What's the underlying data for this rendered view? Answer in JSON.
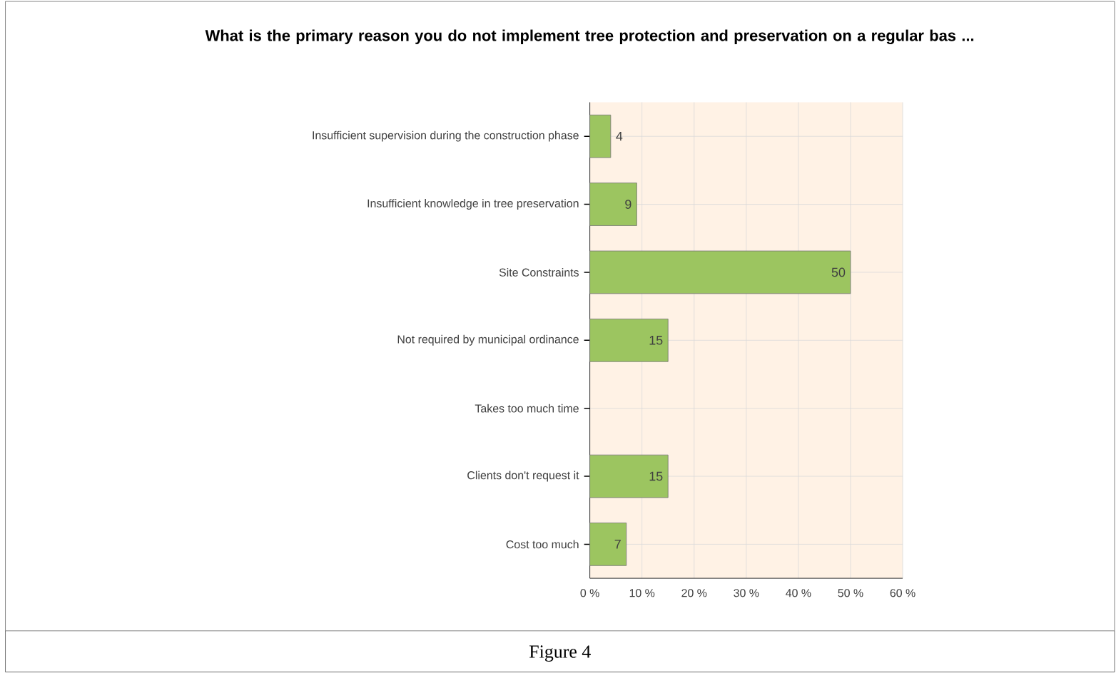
{
  "chart_data": {
    "type": "bar",
    "orientation": "horizontal",
    "title": "What is the primary reason you do not implement tree protection and preservation on a regular bas ...",
    "categories": [
      "Insufficient supervision during the construction phase",
      "Insufficient knowledge in tree preservation",
      "Site Constraints",
      "Not required by municipal ordinance",
      "Takes too much time",
      "Clients don't request it",
      "Cost too much"
    ],
    "values": [
      4,
      9,
      50,
      15,
      0,
      15,
      7
    ],
    "value_labels": [
      "4",
      "9",
      "50",
      "15",
      null,
      "15",
      "7"
    ],
    "color": "#9cc560",
    "xlim": [
      0,
      60
    ],
    "xticks": [
      {
        "value": 0,
        "label": "0 %"
      },
      {
        "value": 10,
        "label": "10 %"
      },
      {
        "value": 20,
        "label": "20 %"
      },
      {
        "value": 30,
        "label": "30 %"
      },
      {
        "value": 40,
        "label": "40 %"
      },
      {
        "value": 50,
        "label": "50 %"
      },
      {
        "value": 60,
        "label": "60 %"
      }
    ],
    "grid": true,
    "annotations": [
      "Figure 4"
    ]
  }
}
